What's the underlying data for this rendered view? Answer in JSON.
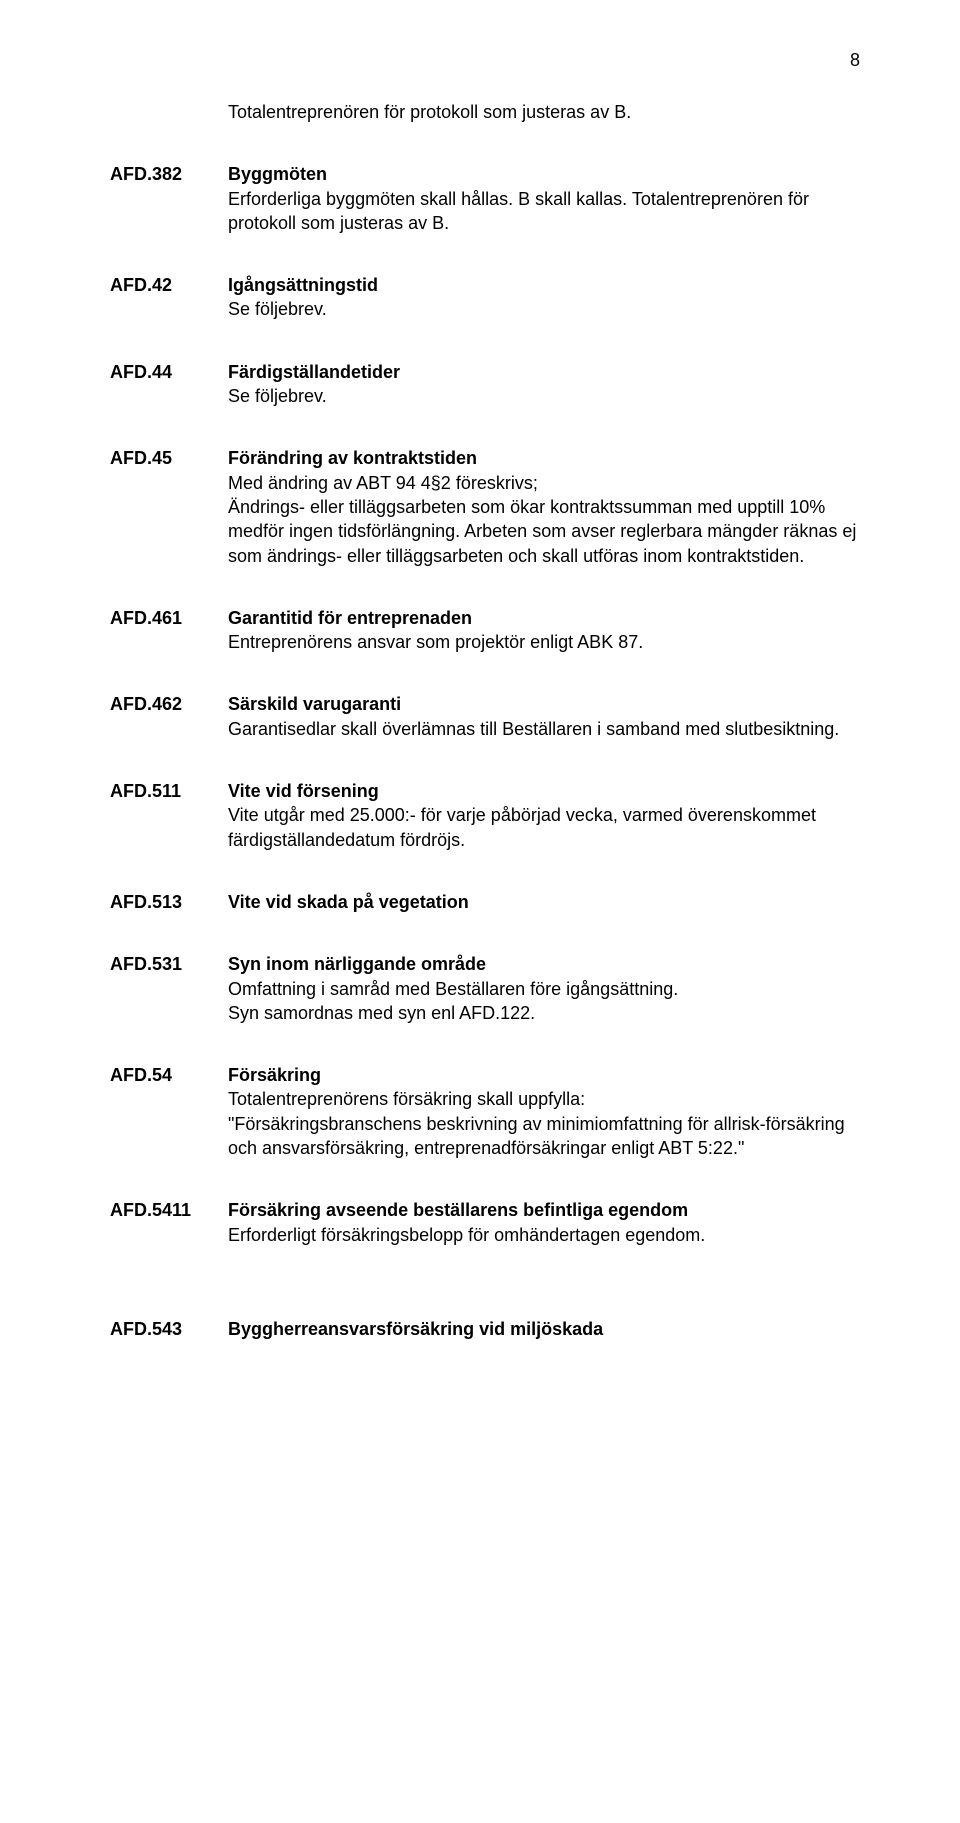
{
  "pageNumber": "8",
  "intro": "Totalentreprenören för protokoll som justeras av B.",
  "sections": [
    {
      "code": "AFD.382",
      "title": "Byggmöten",
      "body": "Erforderliga byggmöten skall hållas. B skall kallas. Totalentreprenören för protokoll som justeras av B."
    },
    {
      "code": "AFD.42",
      "title": "Igångsättningstid",
      "body": "Se följebrev."
    },
    {
      "code": "AFD.44",
      "title": "Färdigställandetider",
      "body": "Se följebrev."
    },
    {
      "code": "AFD.45",
      "title": "Förändring av kontraktstiden",
      "body": "Med ändring av ABT 94 4§2 föreskrivs;\nÄndrings- eller tilläggsarbeten som ökar kontraktssumman med upptill 10% medför ingen tidsförlängning. Arbeten som avser reglerbara mängder räknas ej som ändrings- eller tilläggsarbeten och skall utföras inom kontraktstiden."
    },
    {
      "code": "AFD.461",
      "title": "Garantitid för entreprenaden",
      "body": "Entreprenörens ansvar som projektör enligt ABK 87."
    },
    {
      "code": "AFD.462",
      "title": "Särskild varugaranti",
      "body": "Garantisedlar skall överlämnas till Beställaren i samband med slutbesiktning."
    },
    {
      "code": "AFD.511",
      "title": "Vite vid försening",
      "body": "Vite utgår med 25.000:- för varje påbörjad vecka, varmed överenskommet färdigställandedatum fördröjs."
    },
    {
      "code": "AFD.513",
      "title": "Vite vid skada på vegetation",
      "body": ""
    },
    {
      "code": "AFD.531",
      "title": "Syn inom närliggande område",
      "body": "Omfattning i samråd med Beställaren före igångsättning.\nSyn samordnas med syn enl AFD.122."
    },
    {
      "code": "AFD.54",
      "title": "Försäkring",
      "body": "Totalentreprenörens försäkring skall uppfylla:\n\"Försäkringsbranschens beskrivning av minimiomfattning för allrisk-försäkring och ansvarsförsäkring, entreprenadförsäkringar enligt ABT 5:22.\""
    },
    {
      "code": "AFD.5411",
      "title": "Försäkring avseende beställarens befintliga egendom",
      "body": "Erforderligt försäkringsbelopp för omhändertagen egendom."
    },
    {
      "code": "AFD.543",
      "title": "Byggherreansvarsförsäkring vid miljöskada",
      "body": ""
    }
  ]
}
